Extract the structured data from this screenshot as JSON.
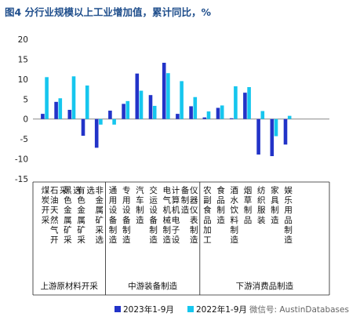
{
  "chart_data": {
    "type": "bar",
    "title": "图4 分行业规模以上工业增加值，累计同比，%",
    "ylim": [
      -15,
      20
    ],
    "yticks": [
      20,
      15,
      10,
      5,
      0,
      -5,
      -10,
      -15
    ],
    "categories": [
      "煤炭开采",
      "石油天然气开采",
      "黑色金属矿采选",
      "有色金属矿采选",
      "非金属矿采选",
      "通用设备制造",
      "专用设备制造",
      "汽车制造",
      "交运设备制造",
      "电气机械制造",
      "计算机电子设备制造",
      "仪器仪表制造",
      "农副食品加工",
      "食品制造",
      "酒水饮料制造",
      "烟草制品",
      "纺织服装",
      "家具制造",
      "娱乐用品制造"
    ],
    "series": [
      {
        "name": "2023年1-9月",
        "color": "#2233c8",
        "values": [
          1.3,
          4.3,
          2.3,
          -4.2,
          -7.2,
          2.1,
          3.8,
          11.4,
          6.0,
          14.1,
          1.3,
          3.2,
          0.4,
          2.8,
          0.2,
          6.6,
          -8.9,
          -9.3,
          -6.4
        ]
      },
      {
        "name": "2022年1-9月",
        "color": "#16c6ee",
        "values": [
          10.5,
          5.2,
          10.7,
          8.4,
          -1.4,
          -1.4,
          4.5,
          7.1,
          3.3,
          11.5,
          9.5,
          5.5,
          1.9,
          3.4,
          8.2,
          8.0,
          2.0,
          -4.3,
          0.8
        ]
      }
    ],
    "groups": [
      {
        "label": "上游原材料开采"
      },
      {
        "label": "中游装备制造"
      },
      {
        "label": "下游消费品制造"
      }
    ],
    "legend_position": "bottom"
  },
  "watermark": "微信号: AustinDatabases"
}
